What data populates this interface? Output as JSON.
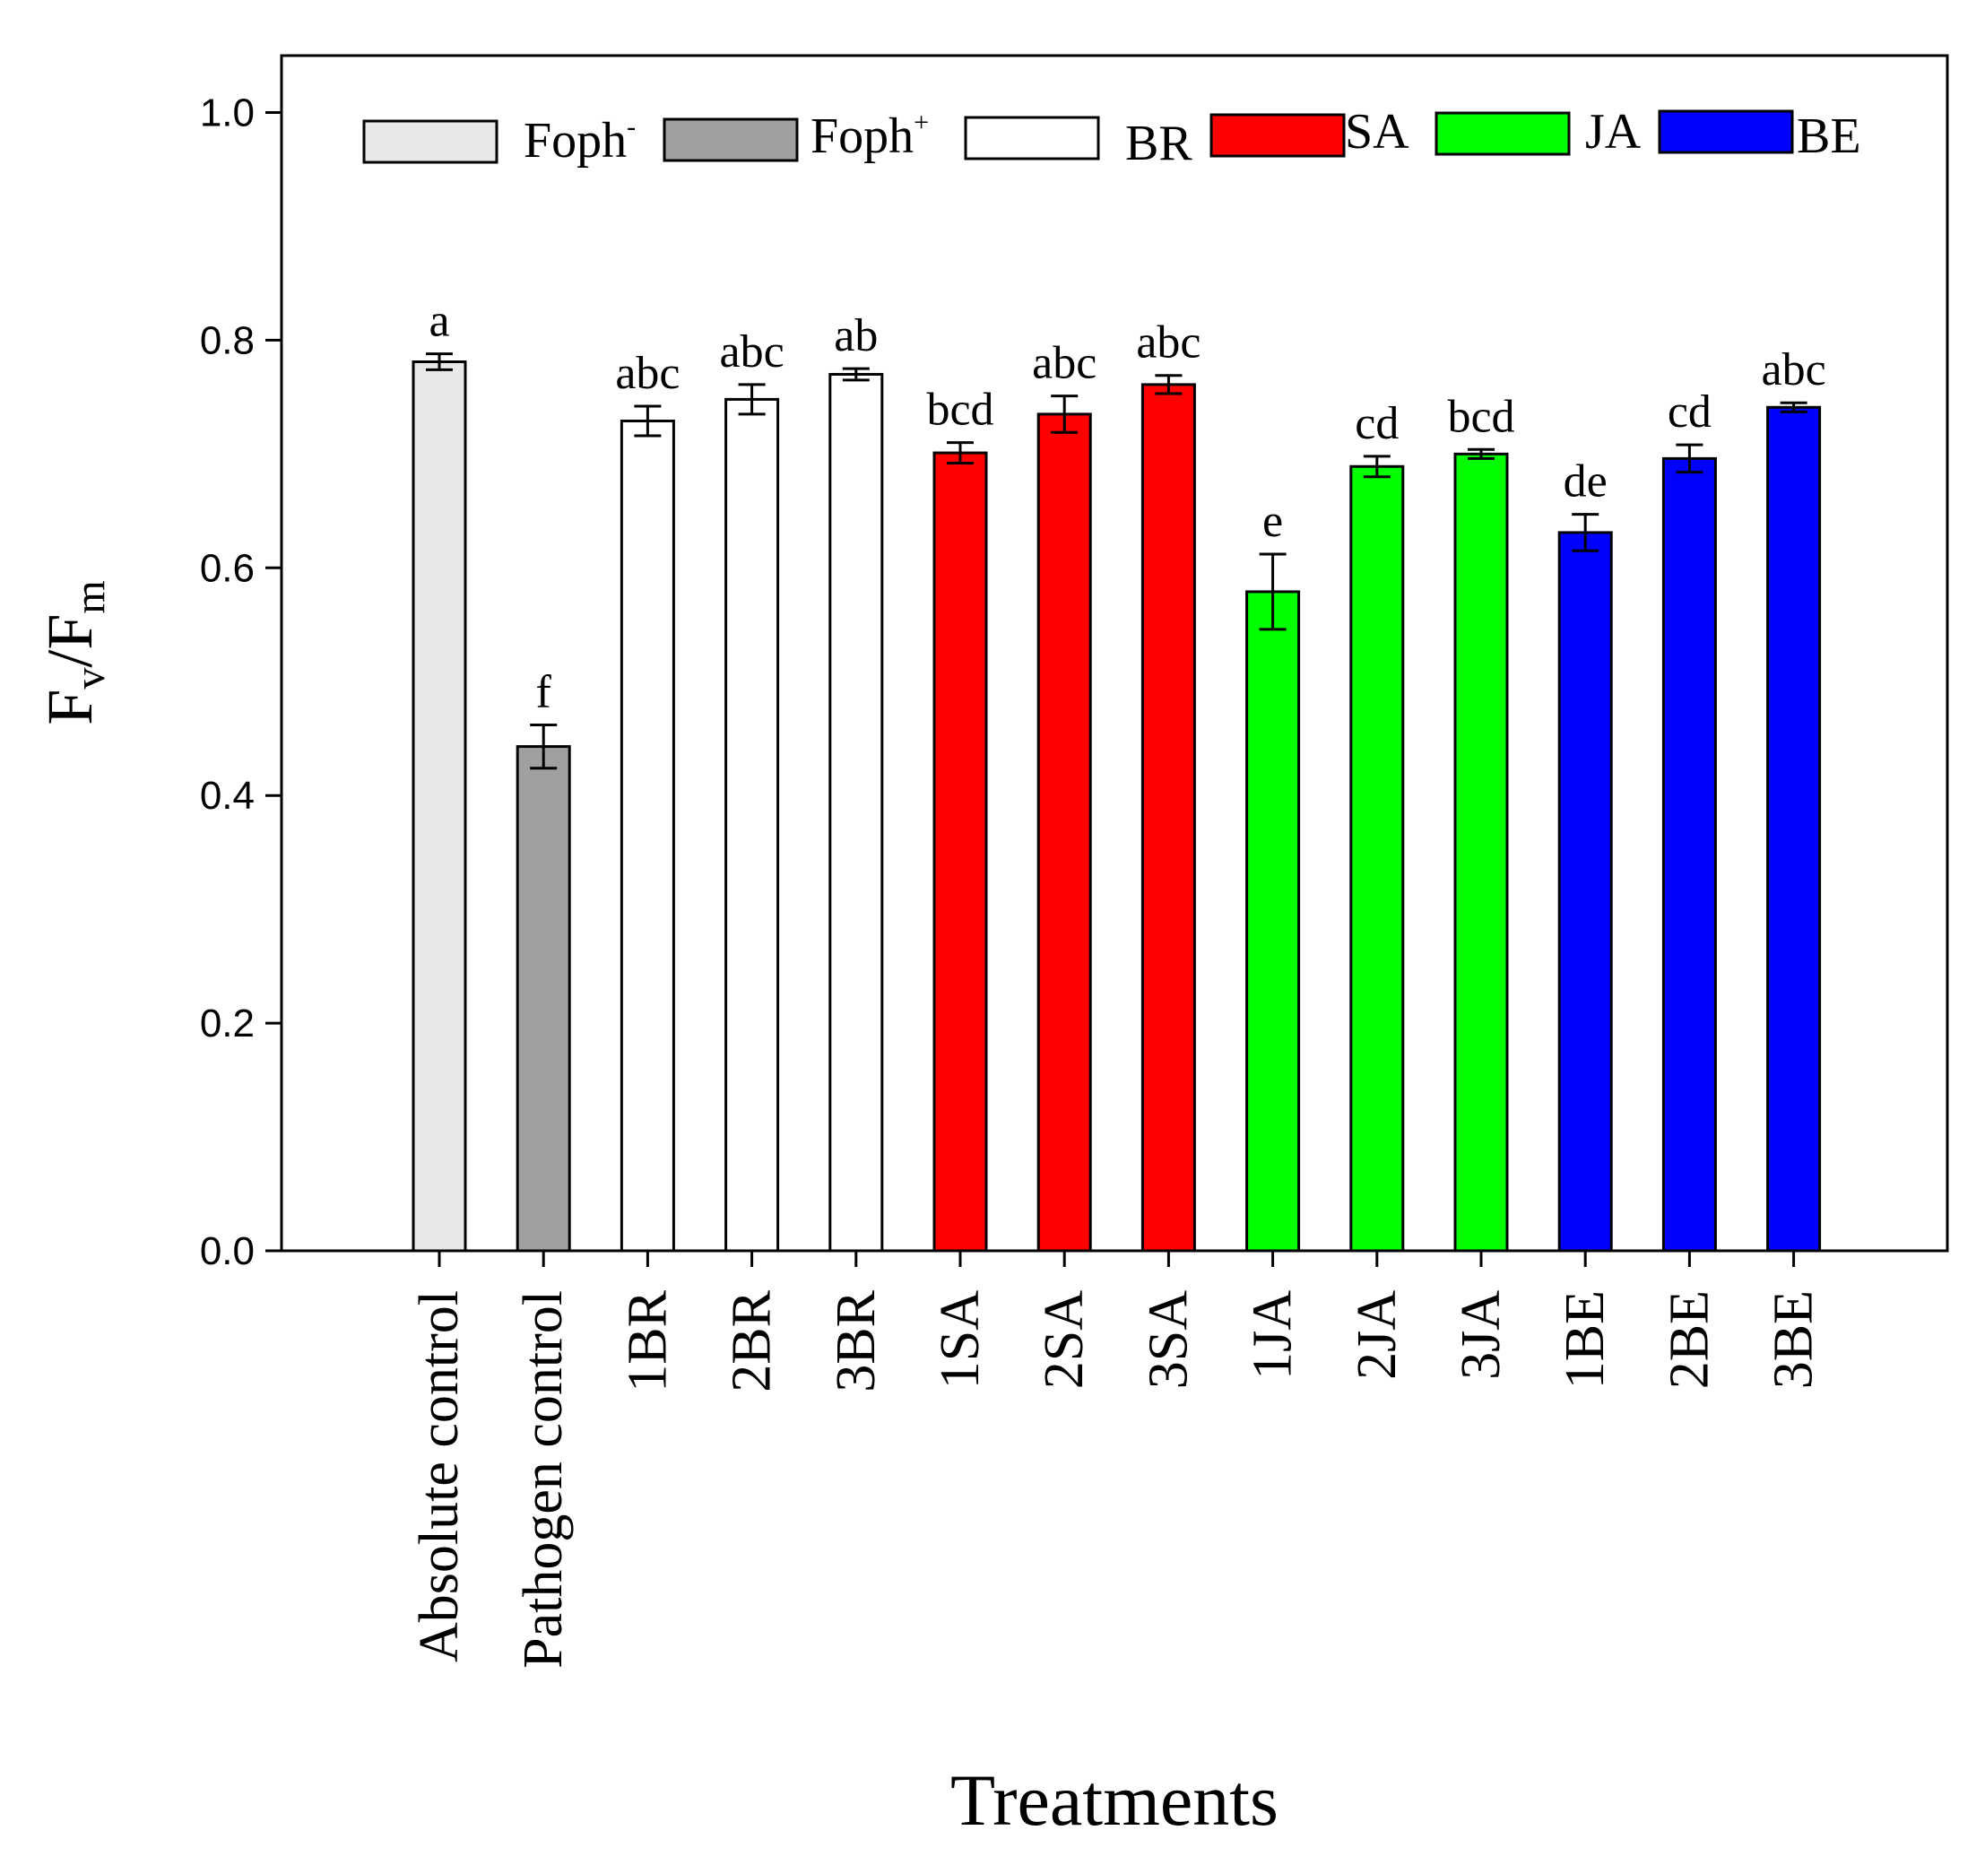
{
  "chart_data": {
    "type": "bar",
    "xlabel": "Treatments",
    "ylabel": {
      "base": "F",
      "sub1": "v",
      "sep": "/",
      "base2": "F",
      "sub2": "m"
    },
    "ylim": [
      0,
      1.0
    ],
    "yticks": [
      "0.0",
      "0.2",
      "0.4",
      "0.6",
      "0.8",
      "1.0"
    ],
    "categories": [
      "Absolute control",
      "Pathogen control",
      "1BR",
      "2BR",
      "3BR",
      "1SA",
      "2SA",
      "3SA",
      "1JA",
      "2JA",
      "3JA",
      "1BE",
      "2BE",
      "3BE"
    ],
    "values": [
      0.781,
      0.443,
      0.729,
      0.748,
      0.77,
      0.701,
      0.735,
      0.761,
      0.579,
      0.689,
      0.7,
      0.631,
      0.696,
      0.741
    ],
    "errors": [
      0.007,
      0.019,
      0.013,
      0.013,
      0.005,
      0.009,
      0.016,
      0.008,
      0.033,
      0.009,
      0.004,
      0.016,
      0.012,
      0.004
    ],
    "letters": [
      "a",
      "f",
      "abc",
      "abc",
      "ab",
      "bcd",
      "abc",
      "abc",
      "e",
      "cd",
      "bcd",
      "de",
      "cd",
      "abc"
    ],
    "groups": [
      "Foph-",
      "Foph+",
      "BR",
      "BR",
      "BR",
      "SA",
      "SA",
      "SA",
      "JA",
      "JA",
      "JA",
      "BE",
      "BE",
      "BE"
    ],
    "legend": [
      {
        "key": "Foph-",
        "base": "Foph",
        "sup": "-",
        "color": "#e8e8e8"
      },
      {
        "key": "Foph+",
        "base": "Foph",
        "sup": "+",
        "color": "#a0a0a0"
      },
      {
        "key": "BR",
        "base": "BR",
        "sup": "",
        "color": "#ffffff"
      },
      {
        "key": "SA",
        "base": "SA",
        "sup": "",
        "color": "#ff0000"
      },
      {
        "key": "JA",
        "base": "JA",
        "sup": "",
        "color": "#00ff00"
      },
      {
        "key": "BE",
        "base": "BE",
        "sup": "",
        "color": "#0000ff"
      }
    ],
    "legend_position": "top",
    "grid": false
  }
}
